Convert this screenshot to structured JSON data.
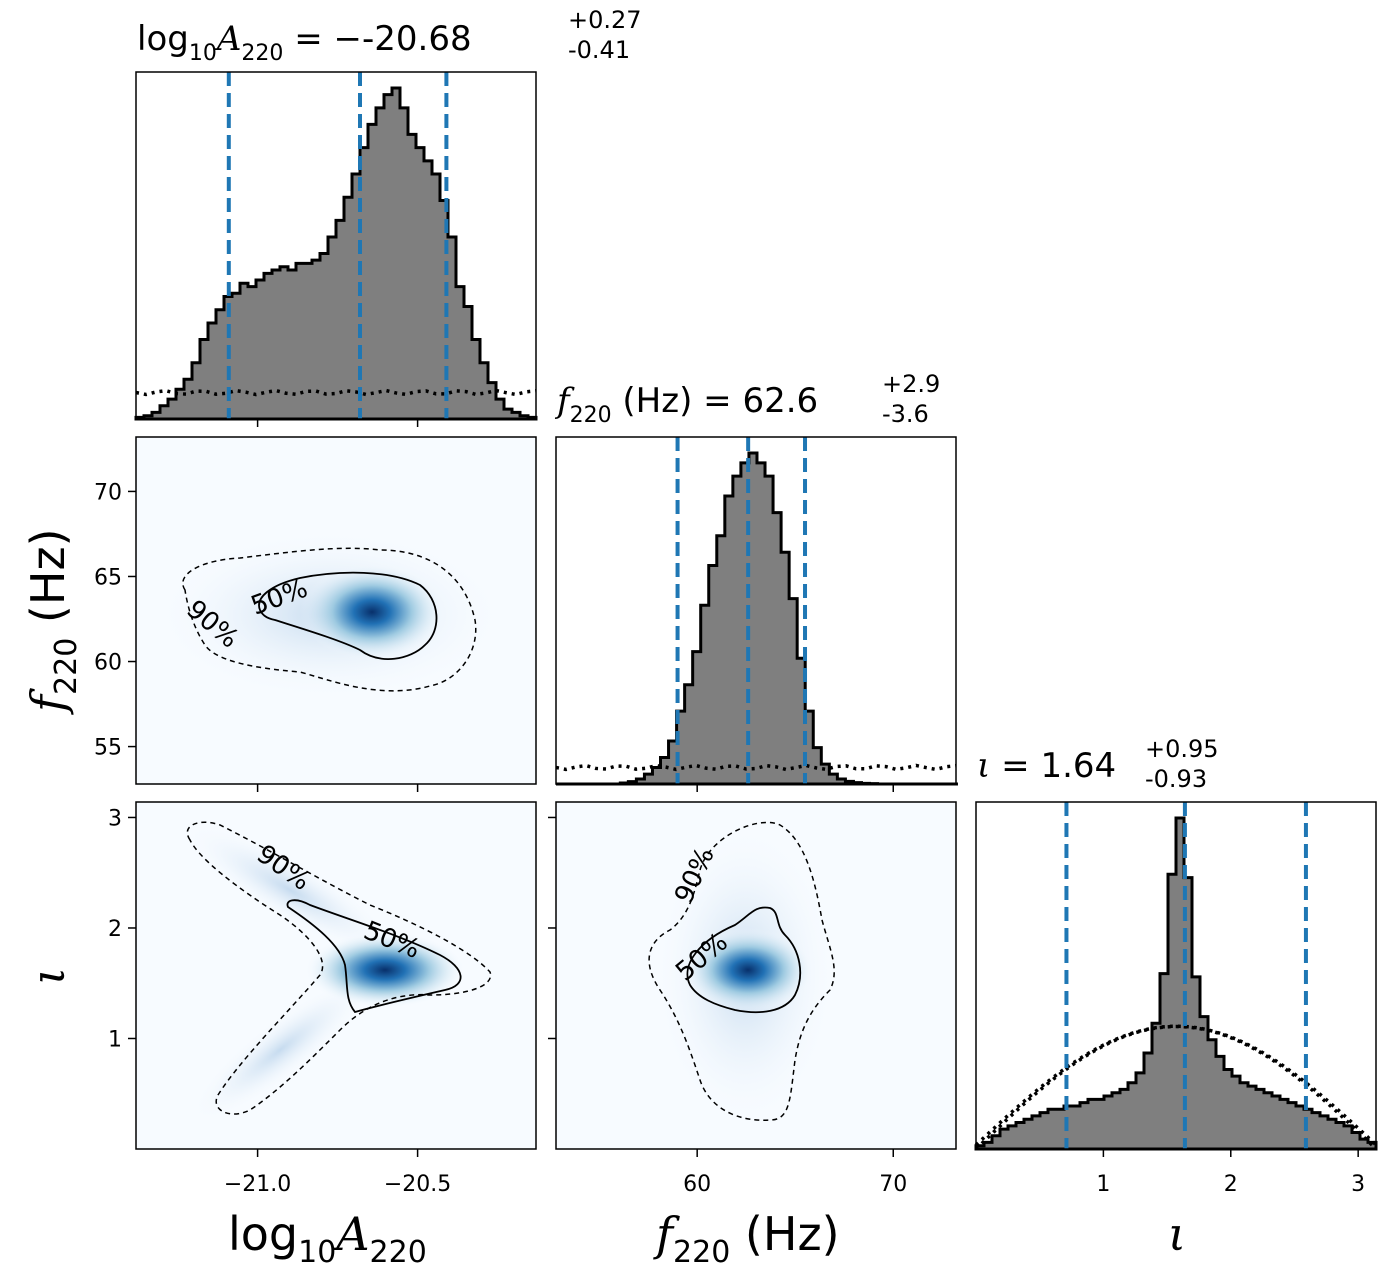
{
  "colors": {
    "hist_fill": "#7f7f7f",
    "hist_edge": "#000000",
    "quantile_line": "#1f77b4",
    "density_low": "#f7fbff",
    "density_high": "#08306b"
  },
  "chart_data": {
    "type": "corner",
    "parameters": [
      {
        "key": "logA",
        "axis_label": "log10A220",
        "title_value": "-20.68",
        "err_plus": "+0.27",
        "err_minus": "-0.41",
        "range": [
          -21.38,
          -20.13
        ]
      },
      {
        "key": "f",
        "axis_label": "f220 (Hz)",
        "title_value": "62.6",
        "err_plus": "+2.9",
        "err_minus": "-3.6",
        "range": [
          52.8,
          73.2
        ]
      },
      {
        "key": "iota",
        "axis_label": "ι",
        "title_value": "1.64",
        "err_plus": "+0.95",
        "err_minus": "-0.93",
        "range": [
          0.0,
          3.14
        ]
      }
    ],
    "titles": {
      "logA": "log10A220 = −20.68+0.27−0.41",
      "f": "f220 (Hz) = 62.6+2.9−3.6",
      "iota": "ι = 1.64+0.95−0.93"
    },
    "ticks": {
      "logA": [
        "−21.0",
        "−20.5"
      ],
      "logA_values": [
        -21.0,
        -20.5
      ],
      "f": [
        "55",
        "60",
        "65",
        "70"
      ],
      "f_values": [
        55,
        60,
        65,
        70
      ],
      "f_x": [
        "60",
        "70"
      ],
      "f_x_values": [
        60,
        70
      ],
      "iota": [
        "1",
        "2",
        "3"
      ],
      "iota_values": [
        1,
        2,
        3
      ]
    },
    "quantiles": {
      "logA": [
        -21.09,
        -20.68,
        -20.41
      ],
      "f": [
        59.0,
        62.6,
        65.5
      ],
      "iota": [
        0.71,
        1.64,
        2.59
      ]
    },
    "histograms": {
      "logA": {
        "edges_start": -21.38,
        "bin_width": 0.025,
        "counts": [
          0.005,
          0.01,
          0.02,
          0.04,
          0.06,
          0.09,
          0.12,
          0.17,
          0.24,
          0.29,
          0.33,
          0.37,
          0.38,
          0.41,
          0.4,
          0.42,
          0.44,
          0.45,
          0.46,
          0.45,
          0.47,
          0.47,
          0.48,
          0.5,
          0.55,
          0.6,
          0.67,
          0.74,
          0.82,
          0.89,
          0.94,
          0.98,
          1.0,
          0.94,
          0.86,
          0.82,
          0.78,
          0.74,
          0.66,
          0.55,
          0.4,
          0.34,
          0.24,
          0.17,
          0.11,
          0.06,
          0.03,
          0.02,
          0.01,
          0.005
        ]
      },
      "f": {
        "edges_start": 52.8,
        "bin_width": 0.41,
        "counts": [
          0,
          0,
          0,
          0,
          0,
          0,
          0,
          0,
          0.003,
          0.007,
          0.015,
          0.03,
          0.05,
          0.08,
          0.13,
          0.22,
          0.3,
          0.4,
          0.54,
          0.66,
          0.75,
          0.87,
          0.93,
          0.97,
          1.0,
          0.97,
          0.93,
          0.82,
          0.7,
          0.56,
          0.38,
          0.22,
          0.11,
          0.06,
          0.03,
          0.015,
          0.008,
          0.004,
          0.002,
          0.001,
          0,
          0,
          0,
          0,
          0,
          0,
          0,
          0,
          0,
          0
        ]
      },
      "iota": {
        "edges_start": 0.0,
        "bin_width": 0.0628,
        "counts": [
          0.01,
          0.02,
          0.04,
          0.06,
          0.07,
          0.08,
          0.09,
          0.1,
          0.11,
          0.12,
          0.12,
          0.13,
          0.13,
          0.14,
          0.15,
          0.15,
          0.16,
          0.17,
          0.18,
          0.2,
          0.23,
          0.29,
          0.38,
          0.53,
          0.83,
          1.0,
          0.82,
          0.52,
          0.4,
          0.33,
          0.28,
          0.24,
          0.22,
          0.2,
          0.19,
          0.18,
          0.17,
          0.16,
          0.15,
          0.14,
          0.13,
          0.12,
          0.11,
          0.1,
          0.09,
          0.08,
          0.07,
          0.05,
          0.03,
          0.02
        ]
      }
    },
    "priors": {
      "logA": {
        "level": 0.08
      },
      "f": {
        "level": 0.05
      },
      "iota_shape": "sin"
    },
    "contour_labels": [
      "50%",
      "90%"
    ],
    "density_2d": {
      "logA_f": {
        "peak": [
          -20.63,
          62.8
        ]
      },
      "logA_iota": {
        "peak": [
          -20.58,
          1.6
        ]
      },
      "f_iota": {
        "peak": [
          63.0,
          1.6
        ]
      }
    }
  }
}
